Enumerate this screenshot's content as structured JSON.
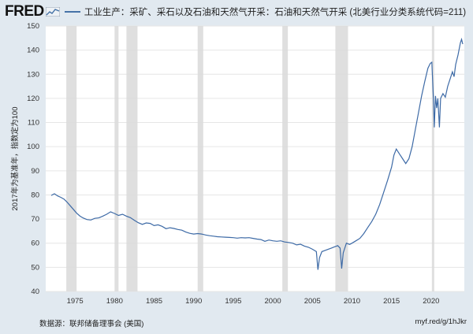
{
  "header": {
    "logo": "FRED",
    "legend_text": "工业生产：采矿、采石以及石油和天然气开采：石油和天然气开采 (北美行业分类系统代码=211)"
  },
  "footer": {
    "source": "数据源：联邦储备理事会 (美国)",
    "url": "myf.red/g/1hJkr"
  },
  "colors": {
    "background": "#e1e9f0",
    "series": "#3d6aa6",
    "recession": "#d9d9d9"
  },
  "chart_data": {
    "type": "line",
    "title": "",
    "xlabel": "",
    "ylabel": "2017年为基准年，指数定为100",
    "xlim": [
      1971.3,
      2024.2
    ],
    "ylim": [
      40,
      150
    ],
    "x_ticks": [
      1975,
      1980,
      1985,
      1990,
      1995,
      2000,
      2005,
      2010,
      2015,
      2020
    ],
    "y_ticks": [
      40,
      50,
      60,
      70,
      80,
      90,
      100,
      110,
      120,
      130,
      140,
      150
    ],
    "grid": true,
    "recessions": [
      [
        1973.9,
        1975.2
      ],
      [
        1980.0,
        1980.5
      ],
      [
        1981.5,
        1982.9
      ],
      [
        1990.5,
        1991.2
      ],
      [
        2001.2,
        2001.9
      ],
      [
        2007.9,
        2009.5
      ],
      [
        2020.1,
        2020.4
      ]
    ],
    "series": [
      {
        "points": [
          [
            1972.0,
            79.8
          ],
          [
            1972.4,
            80.5
          ],
          [
            1972.8,
            79.6
          ],
          [
            1973.2,
            79.0
          ],
          [
            1973.6,
            78.3
          ],
          [
            1974.0,
            77.0
          ],
          [
            1974.4,
            75.5
          ],
          [
            1974.8,
            74.0
          ],
          [
            1975.2,
            72.5
          ],
          [
            1975.6,
            71.3
          ],
          [
            1976.0,
            70.5
          ],
          [
            1976.5,
            69.8
          ],
          [
            1977.0,
            69.6
          ],
          [
            1977.5,
            70.3
          ],
          [
            1978.0,
            70.5
          ],
          [
            1978.5,
            71.2
          ],
          [
            1979.0,
            72.0
          ],
          [
            1979.5,
            73.0
          ],
          [
            1980.0,
            72.3
          ],
          [
            1980.5,
            71.5
          ],
          [
            1981.0,
            72.0
          ],
          [
            1981.5,
            71.2
          ],
          [
            1982.0,
            70.6
          ],
          [
            1982.5,
            69.5
          ],
          [
            1983.0,
            68.5
          ],
          [
            1983.5,
            67.8
          ],
          [
            1984.0,
            68.4
          ],
          [
            1984.5,
            68.2
          ],
          [
            1985.0,
            67.3
          ],
          [
            1985.5,
            67.6
          ],
          [
            1986.0,
            67.0
          ],
          [
            1986.5,
            66.0
          ],
          [
            1987.0,
            66.4
          ],
          [
            1987.5,
            66.1
          ],
          [
            1988.0,
            65.7
          ],
          [
            1988.5,
            65.4
          ],
          [
            1989.0,
            64.6
          ],
          [
            1989.5,
            64.1
          ],
          [
            1990.0,
            63.8
          ],
          [
            1990.5,
            64.0
          ],
          [
            1991.0,
            63.8
          ],
          [
            1991.5,
            63.4
          ],
          [
            1992.0,
            63.1
          ],
          [
            1992.5,
            62.9
          ],
          [
            1993.0,
            62.7
          ],
          [
            1993.5,
            62.6
          ],
          [
            1994.0,
            62.5
          ],
          [
            1994.5,
            62.4
          ],
          [
            1995.0,
            62.3
          ],
          [
            1995.5,
            62.1
          ],
          [
            1996.0,
            62.3
          ],
          [
            1996.5,
            62.2
          ],
          [
            1997.0,
            62.3
          ],
          [
            1997.5,
            62.0
          ],
          [
            1998.0,
            61.7
          ],
          [
            1998.5,
            61.5
          ],
          [
            1999.0,
            60.8
          ],
          [
            1999.5,
            61.3
          ],
          [
            2000.0,
            61.0
          ],
          [
            2000.5,
            60.8
          ],
          [
            2001.0,
            61.0
          ],
          [
            2001.5,
            60.5
          ],
          [
            2002.0,
            60.3
          ],
          [
            2002.5,
            60.0
          ],
          [
            2003.0,
            59.3
          ],
          [
            2003.5,
            59.6
          ],
          [
            2004.0,
            58.8
          ],
          [
            2004.5,
            58.3
          ],
          [
            2005.0,
            57.5
          ],
          [
            2005.5,
            56.5
          ],
          [
            2005.7,
            49.0
          ],
          [
            2005.9,
            54.0
          ],
          [
            2006.2,
            56.5
          ],
          [
            2006.6,
            57.0
          ],
          [
            2007.0,
            57.5
          ],
          [
            2007.4,
            58.0
          ],
          [
            2007.8,
            58.5
          ],
          [
            2008.2,
            59.0
          ],
          [
            2008.5,
            58.0
          ],
          [
            2008.7,
            49.5
          ],
          [
            2008.9,
            56.0
          ],
          [
            2009.3,
            60.0
          ],
          [
            2009.7,
            59.5
          ],
          [
            2010.0,
            60.0
          ],
          [
            2010.5,
            61.0
          ],
          [
            2011.0,
            62.0
          ],
          [
            2011.5,
            64.0
          ],
          [
            2012.0,
            66.5
          ],
          [
            2012.5,
            69.0
          ],
          [
            2013.0,
            72.0
          ],
          [
            2013.5,
            76.0
          ],
          [
            2014.0,
            81.0
          ],
          [
            2014.5,
            86.0
          ],
          [
            2015.0,
            91.5
          ],
          [
            2015.3,
            96.5
          ],
          [
            2015.6,
            99.0
          ],
          [
            2016.0,
            97.0
          ],
          [
            2016.4,
            95.0
          ],
          [
            2016.8,
            93.0
          ],
          [
            2017.2,
            95.0
          ],
          [
            2017.6,
            100.0
          ],
          [
            2018.0,
            107.0
          ],
          [
            2018.4,
            114.0
          ],
          [
            2018.8,
            121.0
          ],
          [
            2019.2,
            127.0
          ],
          [
            2019.6,
            132.5
          ],
          [
            2019.9,
            134.5
          ],
          [
            2020.1,
            135.0
          ],
          [
            2020.3,
            119.0
          ],
          [
            2020.4,
            108.0
          ],
          [
            2020.55,
            121.0
          ],
          [
            2020.7,
            116.0
          ],
          [
            2020.85,
            120.0
          ],
          [
            2021.05,
            108.0
          ],
          [
            2021.2,
            120.0
          ],
          [
            2021.5,
            122.0
          ],
          [
            2021.8,
            120.5
          ],
          [
            2022.1,
            125.0
          ],
          [
            2022.4,
            128.0
          ],
          [
            2022.7,
            131.0
          ],
          [
            2022.9,
            129.0
          ],
          [
            2023.1,
            134.0
          ],
          [
            2023.4,
            138.0
          ],
          [
            2023.7,
            143.0
          ],
          [
            2023.85,
            144.5
          ],
          [
            2024.0,
            142.5
          ]
        ]
      }
    ]
  }
}
